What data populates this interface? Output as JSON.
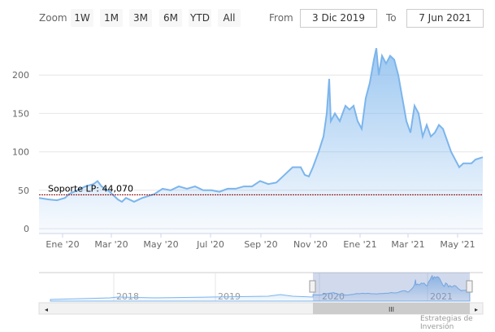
{
  "toolbar": {
    "zoom_label": "Zoom",
    "buttons": [
      "1W",
      "1M",
      "3M",
      "6M",
      "YTD",
      "All"
    ],
    "from_label": "From",
    "from_value": "3 Dic 2019",
    "to_label": "To",
    "to_value": "7 Jun 2021"
  },
  "credits": "Estrategias de Inversión",
  "colors": {
    "line": "#7cb5ec",
    "support": "#8b0000"
  },
  "chart_data": {
    "type": "area",
    "x_unit": "days since 3 Dic 2019",
    "x": [
      0,
      12,
      22,
      32,
      37,
      47,
      57,
      67,
      72,
      77,
      87,
      97,
      102,
      107,
      117,
      127,
      142,
      152,
      162,
      172,
      182,
      192,
      202,
      212,
      222,
      232,
      242,
      252,
      262,
      272,
      282,
      292,
      302,
      312,
      322,
      327,
      332,
      337,
      344,
      350,
      354,
      357,
      359,
      364,
      370,
      377,
      382,
      387,
      392,
      397,
      402,
      407,
      412,
      415,
      418,
      422,
      427,
      432,
      437,
      442,
      447,
      452,
      457,
      462,
      467,
      472,
      477,
      482,
      487,
      492,
      497,
      502,
      507,
      512,
      517,
      522,
      532,
      537,
      546
    ],
    "values": [
      40,
      38,
      37,
      40,
      45,
      50,
      55,
      58,
      62,
      55,
      48,
      38,
      35,
      40,
      35,
      40,
      45,
      52,
      50,
      55,
      52,
      55,
      50,
      50,
      48,
      52,
      52,
      55,
      55,
      62,
      58,
      60,
      70,
      80,
      80,
      70,
      68,
      80,
      100,
      120,
      150,
      195,
      140,
      150,
      140,
      160,
      155,
      160,
      140,
      130,
      170,
      190,
      220,
      235,
      200,
      225,
      215,
      225,
      220,
      200,
      170,
      140,
      125,
      160,
      150,
      120,
      135,
      120,
      125,
      135,
      130,
      115,
      100,
      90,
      80,
      85,
      85,
      90,
      93
    ],
    "ylim": [
      0,
      250
    ],
    "yticks": [
      0,
      50,
      100,
      150,
      200
    ],
    "xtick_labels": [
      "Ene '20",
      "Mar '20",
      "May '20",
      "Jul '20",
      "Sep '20",
      "Nov '20",
      "Ene '21",
      "Mar '21",
      "May '21"
    ],
    "xtick_days": [
      29,
      89,
      150,
      211,
      273,
      334,
      395,
      454,
      515
    ],
    "plot_line": {
      "value": 44.07,
      "label": "Soporte LP: 44,070"
    },
    "navigator": {
      "labels": [
        "2018",
        "2019",
        "2020",
        "2021"
      ],
      "selected_range": [
        "3 Dic 2019",
        "7 Jun 2021"
      ]
    }
  }
}
